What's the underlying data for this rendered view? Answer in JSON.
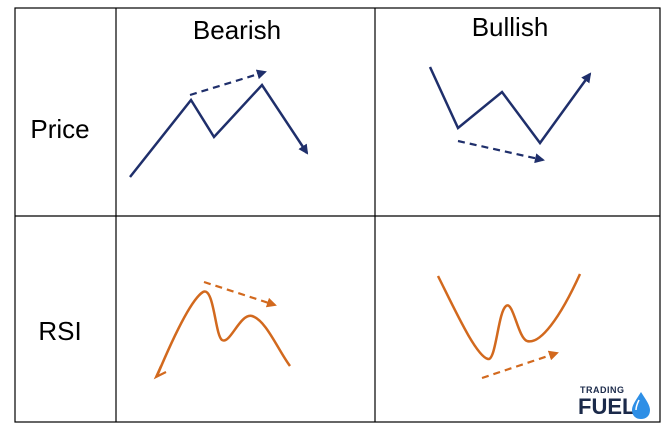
{
  "headers": {
    "bearish": "Bearish",
    "bullish": "Bullish"
  },
  "rows": {
    "price": "Price",
    "rsi": "RSI"
  },
  "logo": {
    "top_text": "TRADING",
    "main_text": "FUEL"
  },
  "colors": {
    "price_line": "#1f2f6b",
    "rsi_line": "#d2691e",
    "grid": "#000000",
    "logo_drop": "#2e8fe6"
  },
  "icons": {
    "logo_drop": "water-drop-icon",
    "arrowheads": "arrow-head-icon"
  }
}
